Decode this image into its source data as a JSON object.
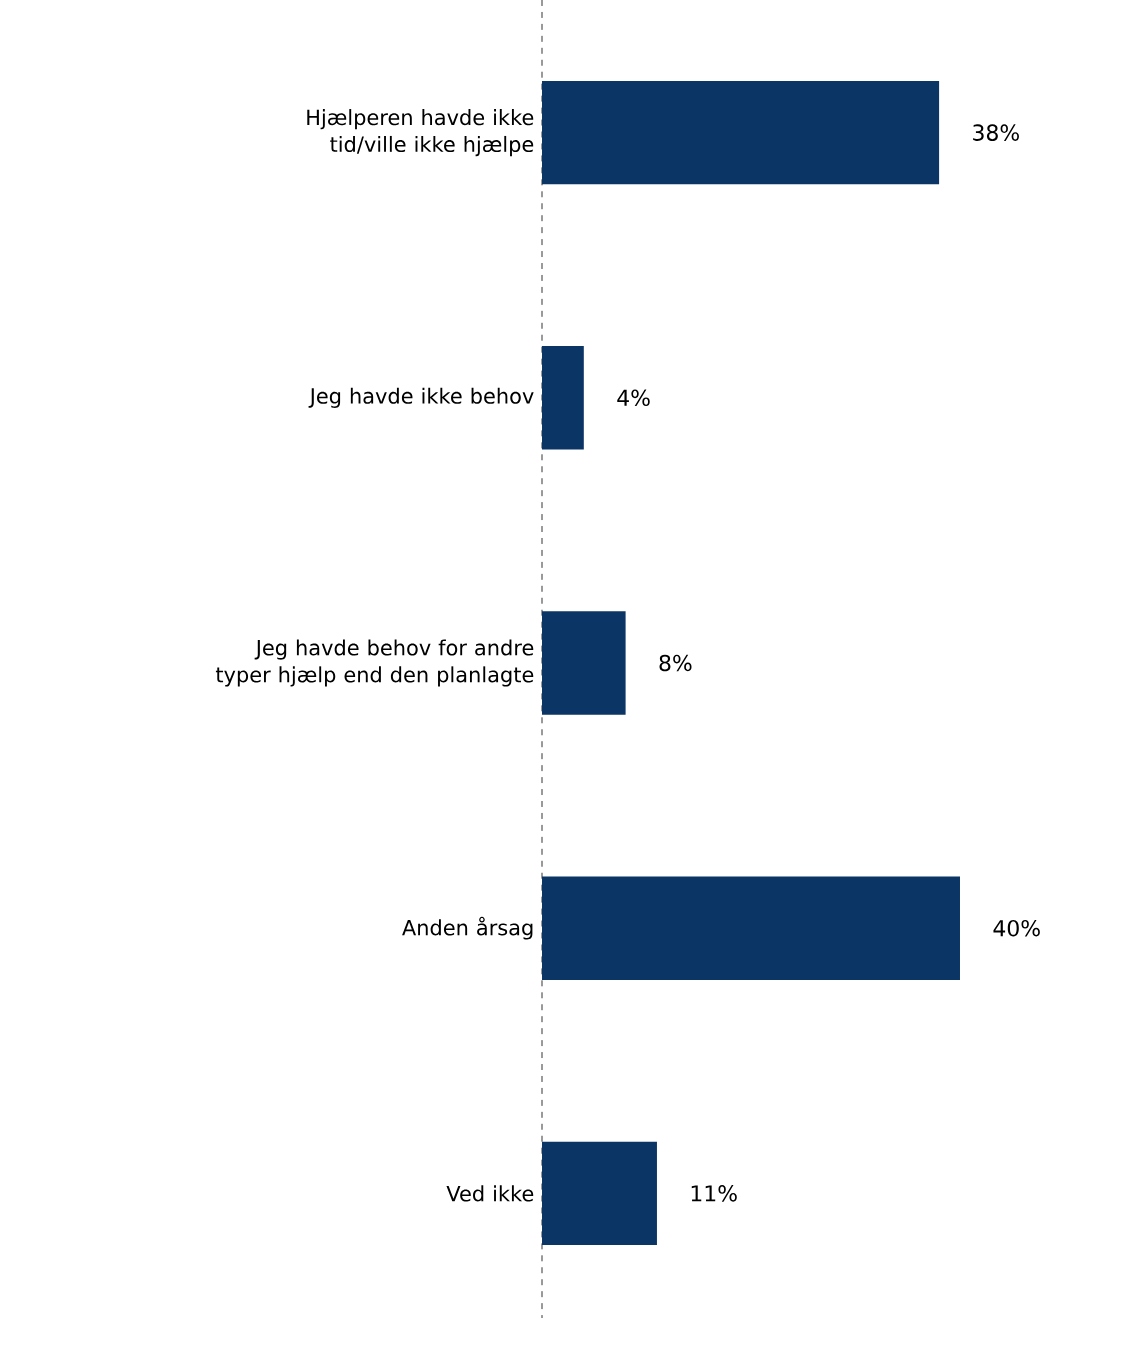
{
  "chart_data": {
    "type": "bar",
    "orientation": "horizontal",
    "categories": [
      "Hjælperen havde ikke tid/ville ikke hjælpe",
      "Jeg havde ikke behov",
      "Jeg havde behov for andre typer hjælp end den planlagte",
      "Anden årsag",
      "Ved ikke"
    ],
    "values": [
      38,
      4,
      8,
      40,
      11
    ],
    "color": "#0b3565",
    "value_labels": [
      "38%",
      "4%",
      "8%",
      "40%",
      "11%"
    ],
    "tick_labels": "y"
  }
}
